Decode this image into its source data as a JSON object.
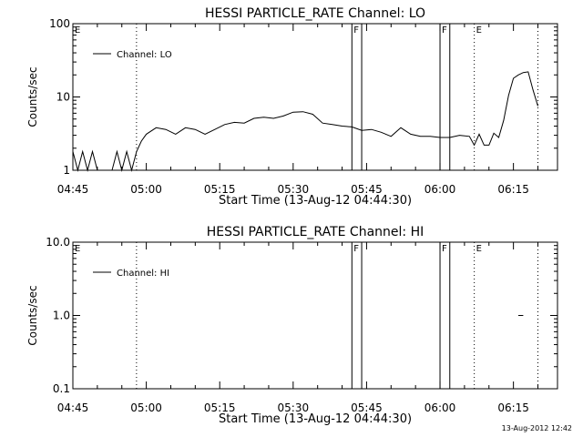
{
  "footer_timestamp": "13-Aug-2012 12:42",
  "chart_data": [
    {
      "type": "line",
      "title": "HESSI PARTICLE_RATE Channel: LO",
      "xlabel": "Start Time (13-Aug-12 04:44:30)",
      "ylabel": "Counts/sec",
      "yscale": "log",
      "ylim": [
        1,
        100
      ],
      "xlim": [
        "04:45",
        "06:24"
      ],
      "x_ticks": [
        "04:45",
        "05:00",
        "05:15",
        "05:30",
        "05:45",
        "06:00",
        "06:15"
      ],
      "y_ticks": [
        "1",
        "10",
        "100"
      ],
      "legend": {
        "label": "Channel: LO",
        "position": "top-left"
      },
      "markers": [
        {
          "label": "E",
          "time": "04:45",
          "style": "dotted"
        },
        {
          "label": "",
          "time": "04:58",
          "style": "dotted"
        },
        {
          "label": "F",
          "time": "05:42",
          "style": "solid"
        },
        {
          "label": "",
          "time": "05:44",
          "style": "solid"
        },
        {
          "label": "F",
          "time": "06:00",
          "style": "solid"
        },
        {
          "label": "",
          "time": "06:02",
          "style": "solid"
        },
        {
          "label": "E",
          "time": "06:07",
          "style": "dotted"
        },
        {
          "label": "",
          "time": "06:20",
          "style": "dotted"
        }
      ],
      "series": [
        {
          "name": "Channel: LO",
          "x": [
            "04:45",
            "04:46",
            "04:47",
            "04:48",
            "04:49",
            "04:50",
            "04:51",
            "04:52",
            "04:53",
            "04:54",
            "04:55",
            "04:56",
            "04:57",
            "04:58",
            "04:59",
            "05:00",
            "05:02",
            "05:04",
            "05:06",
            "05:08",
            "05:10",
            "05:12",
            "05:14",
            "05:16",
            "05:18",
            "05:20",
            "05:22",
            "05:24",
            "05:26",
            "05:28",
            "05:30",
            "05:32",
            "05:34",
            "05:36",
            "05:38",
            "05:40",
            "05:42",
            "05:44",
            "05:46",
            "05:48",
            "05:50",
            "05:52",
            "05:54",
            "05:56",
            "05:58",
            "06:00",
            "06:02",
            "06:04",
            "06:06",
            "06:07",
            "06:08",
            "06:09",
            "06:10",
            "06:11",
            "06:12",
            "06:13",
            "06:14",
            "06:15",
            "06:16",
            "06:17",
            "06:18",
            "06:19",
            "06:20"
          ],
          "values": [
            1.8,
            1,
            1.8,
            1,
            1.8,
            1,
            1,
            1,
            1,
            1.8,
            1,
            1.8,
            1,
            1.8,
            2.5,
            3.1,
            3.8,
            3.6,
            3.1,
            3.8,
            3.6,
            3.1,
            3.6,
            4.2,
            4.5,
            4.4,
            5.1,
            5.3,
            5.1,
            5.5,
            6.2,
            6.3,
            5.8,
            4.4,
            4.2,
            4.0,
            3.9,
            3.5,
            3.6,
            3.3,
            2.9,
            3.8,
            3.1,
            2.9,
            2.9,
            2.8,
            2.8,
            3.0,
            2.9,
            2.2,
            3.1,
            2.2,
            2.2,
            3.2,
            2.8,
            4.8,
            10.5,
            18,
            20,
            21.5,
            22,
            12.5,
            7.5
          ]
        }
      ]
    },
    {
      "type": "line",
      "title": "HESSI PARTICLE_RATE Channel: HI",
      "xlabel": "Start Time (13-Aug-12 04:44:30)",
      "ylabel": "Counts/sec",
      "yscale": "log",
      "ylim": [
        0.1,
        10
      ],
      "xlim": [
        "04:45",
        "06:24"
      ],
      "x_ticks": [
        "04:45",
        "05:00",
        "05:15",
        "05:30",
        "05:45",
        "06:00",
        "06:15"
      ],
      "y_ticks": [
        "0.1",
        "1.0",
        "10.0"
      ],
      "legend": {
        "label": "Channel: HI",
        "position": "top-left"
      },
      "markers": [
        {
          "label": "E",
          "time": "04:45",
          "style": "dotted"
        },
        {
          "label": "",
          "time": "04:58",
          "style": "dotted"
        },
        {
          "label": "F",
          "time": "05:42",
          "style": "solid"
        },
        {
          "label": "",
          "time": "05:44",
          "style": "solid"
        },
        {
          "label": "F",
          "time": "06:00",
          "style": "solid"
        },
        {
          "label": "",
          "time": "06:02",
          "style": "solid"
        },
        {
          "label": "E",
          "time": "06:07",
          "style": "dotted"
        },
        {
          "label": "",
          "time": "06:20",
          "style": "dotted"
        }
      ],
      "series": [
        {
          "name": "Channel: HI",
          "x": [
            "06:16",
            "06:17"
          ],
          "values": [
            1.0,
            1.0
          ]
        }
      ]
    }
  ]
}
